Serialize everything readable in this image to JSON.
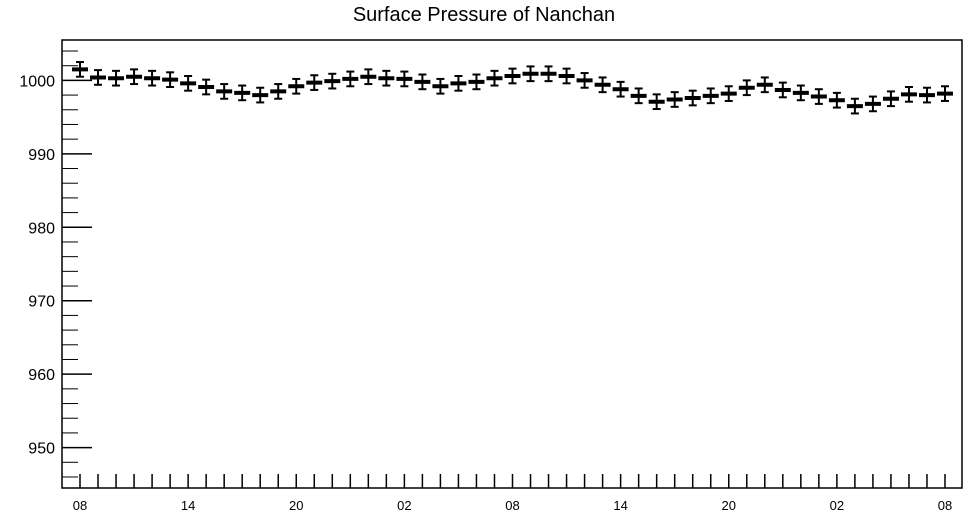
{
  "chart_data": {
    "type": "scatter",
    "title": "Surface Pressure of Nanchan",
    "xlabel": "",
    "ylabel": "",
    "ylim": [
      944.5,
      1005.5
    ],
    "y_ticks": [
      "1000",
      "990",
      "980",
      "970",
      "960",
      "950"
    ],
    "y_tick_values": [
      1000,
      990,
      980,
      970,
      960,
      950
    ],
    "x_ticks": [
      "08",
      "14",
      "20",
      "02",
      "08",
      "14",
      "20",
      "02",
      "08"
    ],
    "error_bar": 1,
    "series": [
      {
        "values": [
          1001.5,
          1000.4,
          1000.3,
          1000.5,
          1000.3,
          1000.1,
          999.6,
          999.1,
          998.5,
          998.3,
          998.0,
          998.5,
          999.2,
          999.7,
          999.9,
          1000.2,
          1000.5,
          1000.3,
          1000.2,
          999.8,
          999.2,
          999.6,
          999.8,
          1000.3,
          1000.6,
          1000.9,
          1000.9,
          1000.6,
          1000.0,
          999.4,
          998.8,
          997.9,
          997.1,
          997.4,
          997.6,
          997.9,
          998.2,
          999.0,
          999.4,
          998.7,
          998.3,
          997.8,
          997.3,
          996.5,
          996.8,
          997.5,
          998.1,
          998.0,
          998.2
        ]
      }
    ]
  }
}
